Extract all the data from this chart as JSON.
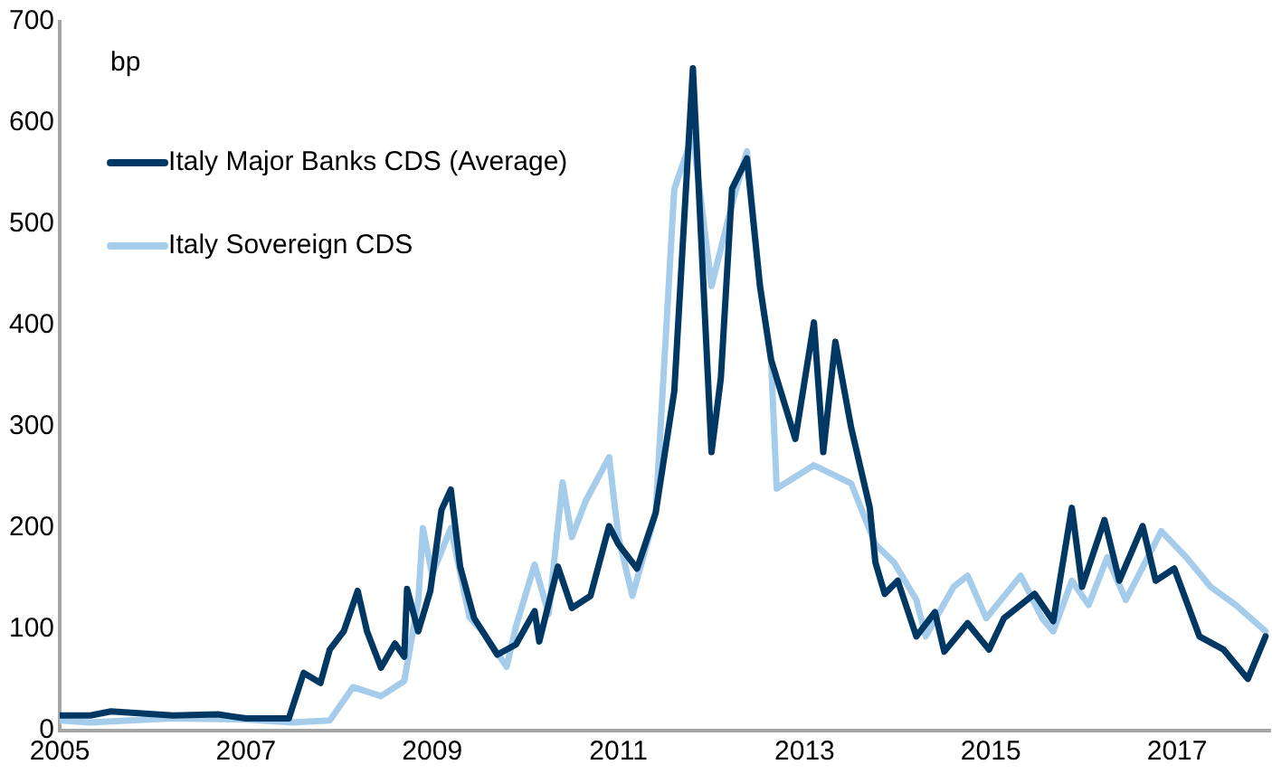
{
  "chart_data": {
    "type": "line",
    "ylabel": "bp",
    "xlim": [
      2005,
      2018
    ],
    "xticks": [
      2005,
      2007,
      2009,
      2011,
      2013,
      2015,
      2017
    ],
    "ylim": [
      0,
      700
    ],
    "yticks": [
      0,
      100,
      200,
      300,
      400,
      500,
      600,
      700
    ],
    "grid": false,
    "legend": "top left",
    "marker": "none",
    "line_style": "solid",
    "series": [
      {
        "name": "Italy Major Banks CDS (Average)",
        "color": "#003863",
        "x": [
          2005,
          2005.33,
          2005.55,
          2006.22,
          2006.7,
          2007.0,
          2007.46,
          2007.62,
          2007.8,
          2007.9,
          2008.05,
          2008.2,
          2008.3,
          2008.45,
          2008.6,
          2008.7,
          2008.73,
          2008.85,
          2008.98,
          2009.1,
          2009.2,
          2009.3,
          2009.45,
          2009.7,
          2009.9,
          2010.1,
          2010.15,
          2010.35,
          2010.5,
          2010.7,
          2010.9,
          2011.0,
          2011.2,
          2011.4,
          2011.6,
          2011.8,
          2012.0,
          2012.1,
          2012.22,
          2012.38,
          2012.52,
          2012.64,
          2012.9,
          2013.1,
          2013.2,
          2013.33,
          2013.5,
          2013.7,
          2013.76,
          2013.86,
          2014.0,
          2014.2,
          2014.4,
          2014.5,
          2014.75,
          2014.98,
          2015.14,
          2015.47,
          2015.67,
          2015.87,
          2015.98,
          2016.22,
          2016.38,
          2016.63,
          2016.77,
          2016.97,
          2017.24,
          2017.5,
          2017.76,
          2017.95
        ],
        "values": [
          15,
          15,
          19,
          15,
          16,
          12,
          12,
          57,
          47,
          80,
          98,
          138,
          98,
          62,
          86,
          73,
          140,
          98,
          138,
          218,
          238,
          162,
          111,
          75,
          85,
          118,
          88,
          162,
          121,
          133,
          202,
          184,
          160,
          215,
          335,
          654,
          275,
          348,
          535,
          565,
          439,
          366,
          288,
          403,
          275,
          384,
          299,
          220,
          166,
          135,
          148,
          93,
          117,
          78,
          106,
          80,
          111,
          135,
          108,
          220,
          142,
          208,
          148,
          202,
          148,
          160,
          93,
          80,
          51,
          93
        ]
      },
      {
        "name": "Italy Sovereign CDS",
        "color": "#a5cdeb",
        "x": [
          2005,
          2005.33,
          2006.2,
          2007.0,
          2007.5,
          2007.9,
          2008.15,
          2008.45,
          2008.7,
          2008.85,
          2008.9,
          2009.0,
          2009.2,
          2009.4,
          2009.55,
          2009.8,
          2009.9,
          2010.1,
          2010.25,
          2010.4,
          2010.5,
          2010.65,
          2010.9,
          2011.0,
          2011.15,
          2011.4,
          2011.6,
          2011.8,
          2012.0,
          2012.22,
          2012.38,
          2012.52,
          2012.64,
          2012.7,
          2013.1,
          2013.5,
          2013.76,
          2013.96,
          2014.2,
          2014.3,
          2014.6,
          2014.75,
          2014.95,
          2015.32,
          2015.55,
          2015.67,
          2015.87,
          2016.05,
          2016.25,
          2016.45,
          2016.83,
          2017.1,
          2017.36,
          2017.63,
          2017.95
        ],
        "values": [
          10,
          8,
          12,
          11,
          8,
          10,
          43,
          34,
          49,
          128,
          200,
          154,
          200,
          112,
          97,
          63,
          103,
          164,
          115,
          245,
          191,
          227,
          270,
          191,
          133,
          215,
          535,
          588,
          439,
          520,
          572,
          439,
          366,
          239,
          262,
          244,
          184,
          166,
          129,
          93,
          142,
          153,
          111,
          153,
          111,
          98,
          148,
          124,
          171,
          129,
          197,
          171,
          142,
          124,
          98
        ]
      }
    ]
  }
}
